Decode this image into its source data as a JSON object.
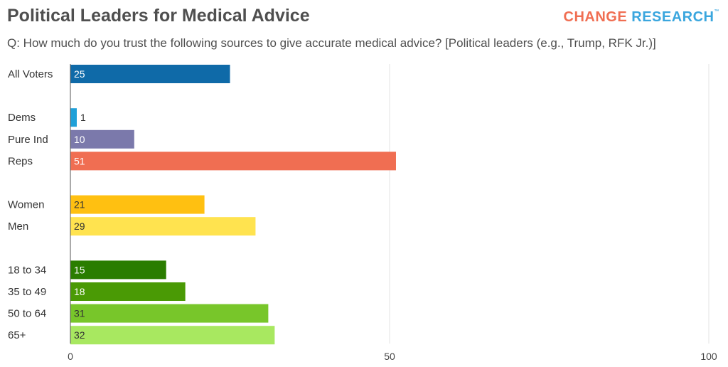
{
  "header": {
    "title": "Political Leaders for Medical Advice",
    "subtitle": "Q: How much do you trust the following sources to give accurate medical advice? [Political leaders (e.g., Trump, RFK Jr.)]",
    "logo_word1": "CHANGE",
    "logo_word2": "RESEARCH",
    "logo_mark": "™"
  },
  "chart_data": {
    "type": "bar",
    "orientation": "horizontal",
    "title": "Political Leaders for Medical Advice",
    "xlim": [
      0,
      100
    ],
    "xticks": [
      0,
      50,
      100
    ],
    "grid": true,
    "categories": [
      "All Voters",
      "Dems",
      "Pure Ind",
      "Reps",
      "Women",
      "Men",
      "18 to 34",
      "35 to 49",
      "50 to 64",
      "65+"
    ],
    "groups": [
      0,
      1,
      1,
      1,
      2,
      2,
      3,
      3,
      3,
      3
    ],
    "values": [
      25,
      1,
      10,
      51,
      21,
      29,
      15,
      18,
      31,
      32
    ],
    "colors": [
      "#0f6aa8",
      "#1fa0d8",
      "#7b79ab",
      "#f06e52",
      "#ffc011",
      "#ffe34f",
      "#2a7d00",
      "#4a9a05",
      "#78c62a",
      "#a8e860"
    ],
    "label_colors": [
      "#ffffff",
      "#333333",
      "#ffffff",
      "#ffffff",
      "#333333",
      "#333333",
      "#ffffff",
      "#ffffff",
      "#333333",
      "#333333"
    ]
  }
}
